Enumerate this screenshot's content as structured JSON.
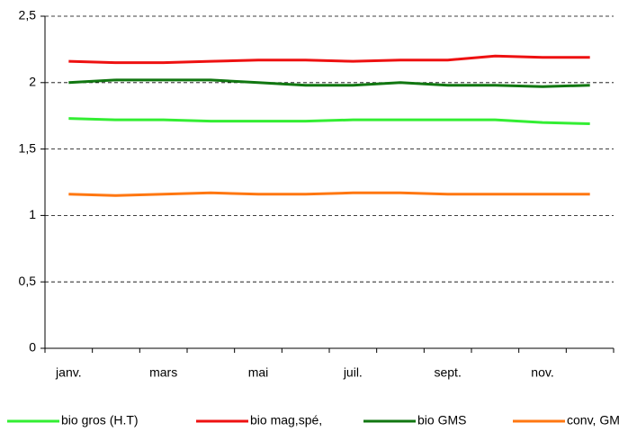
{
  "chart_data": {
    "type": "line",
    "categories": [
      "janv.",
      null,
      "mars",
      null,
      "mai",
      null,
      "juil.",
      null,
      "sept.",
      null,
      "nov.",
      null
    ],
    "series": [
      {
        "name": "bio gros (H.T)",
        "color": "#33ee33",
        "values": [
          1.73,
          1.72,
          1.72,
          1.71,
          1.71,
          1.71,
          1.72,
          1.72,
          1.72,
          1.72,
          1.7,
          1.69
        ]
      },
      {
        "name": "bio mag,spé,",
        "color": "#ee1111",
        "values": [
          2.16,
          2.15,
          2.15,
          2.16,
          2.17,
          2.17,
          2.16,
          2.17,
          2.17,
          2.2,
          2.19,
          2.19
        ]
      },
      {
        "name": "bio GMS",
        "color": "#117711",
        "values": [
          2.0,
          2.02,
          2.02,
          2.02,
          2.0,
          1.98,
          1.98,
          2.0,
          1.98,
          1.98,
          1.97,
          1.98
        ]
      },
      {
        "name": "conv, GMS",
        "color": "#ff7711",
        "values": [
          1.16,
          1.15,
          1.16,
          1.17,
          1.16,
          1.16,
          1.17,
          1.17,
          1.16,
          1.16,
          1.16,
          1.16
        ]
      }
    ],
    "ylim": [
      0,
      2.5
    ],
    "yticks": [
      0,
      {
        "value": 0.5,
        "label": "0,5"
      },
      1,
      {
        "value": 1.5,
        "label": "1,5"
      },
      2,
      {
        "value": 2.5,
        "label": "2,5"
      }
    ],
    "grid": true,
    "legend": "bottom"
  }
}
